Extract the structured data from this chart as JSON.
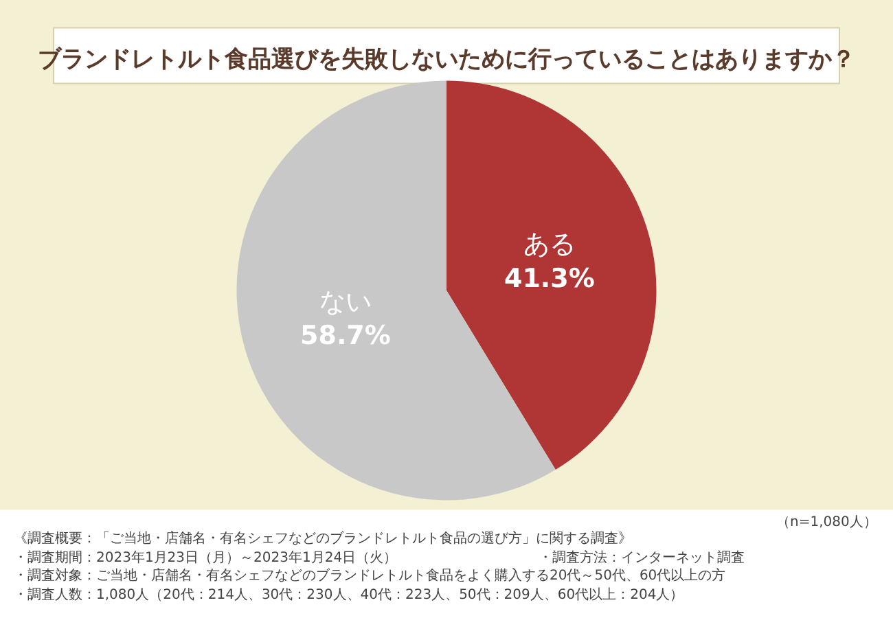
{
  "chart_data": {
    "type": "pie",
    "title": "ブランドレトルト食品選びを失敗しないために行っていることはありますか？",
    "categories": [
      "ある",
      "ない"
    ],
    "values": [
      41.3,
      58.7
    ],
    "value_labels": [
      "41.3%",
      "58.7%"
    ],
    "colors": [
      "#b03535",
      "#c8c8c8"
    ],
    "legend": false,
    "annotations": [
      "（n=1,080人）",
      "《調査概要：「ご当地・店舗名・有名シェフなどのブランドレトルト食品の選び方」に関する調査》",
      "・調査期間：2023年1月23日（月）～2023年1月24日（火）",
      "・調査方法：インターネット調査",
      "・調査対象：ご当地・店舗名・有名シェフなどのブランドレトルト食品をよく購入する20代～50代、60代以上の方",
      "・調査人数：1,080人（20代：214人、30代：230人、40代：223人、50代：209人、60代以上：204人）"
    ]
  }
}
